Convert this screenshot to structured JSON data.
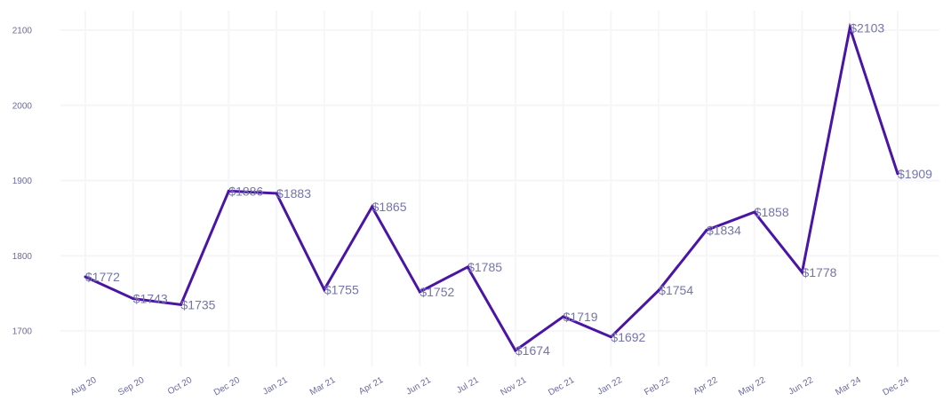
{
  "chart_data": {
    "type": "line",
    "title": "",
    "xlabel": "",
    "ylabel": "",
    "categories": [
      "Aug 20",
      "Sep 20",
      "Oct 20",
      "Dec 20",
      "Jan 21",
      "Mar 21",
      "Apr 21",
      "Jun 21",
      "Jul 21",
      "Nov 21",
      "Dec 21",
      "Jan 22",
      "Feb 22",
      "Apr 22",
      "May 22",
      "Jun 22",
      "Mar 24",
      "Dec 24"
    ],
    "values": [
      1772,
      1743,
      1735,
      1886,
      1883,
      1755,
      1865,
      1752,
      1785,
      1674,
      1719,
      1692,
      1754,
      1834,
      1858,
      1778,
      2103,
      1909
    ],
    "data_labels": [
      "$1772",
      "$1743",
      "$1735",
      "$1886",
      "$1883",
      "$1755",
      "$1865",
      "$1752",
      "$1785",
      "$1674",
      "$1719",
      "$1692",
      "$1754",
      "$1834",
      "$1858",
      "$1778",
      "$2103",
      "$1909"
    ],
    "y_ticks": [
      1700,
      1800,
      1900,
      2000,
      2100
    ],
    "ylim": [
      1650,
      2125
    ],
    "grid": true,
    "colors": {
      "line": "#4a14a4",
      "label": "#7474ac",
      "tick": "#6a6aa0",
      "grid": "#f6f6f8"
    }
  }
}
